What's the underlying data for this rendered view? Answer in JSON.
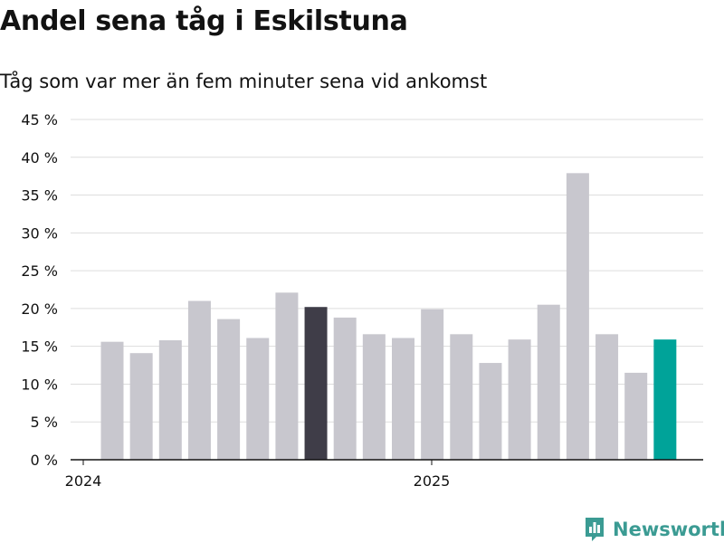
{
  "chart_data": {
    "type": "bar",
    "title": "Andel sena tåg i Eskilstuna",
    "subtitle": "Tåg som var mer än fem minuter sena vid ankomst",
    "y_ticks": [
      "0 %",
      "5 %",
      "10 %",
      "15 %",
      "20 %",
      "25 %",
      "30 %",
      "35 %",
      "40 %",
      "45 %"
    ],
    "ylim": [
      0,
      45
    ],
    "x_tick_labels": [
      "2024",
      "2025"
    ],
    "grid": true,
    "values": [
      15.6,
      14.1,
      15.8,
      21.0,
      18.6,
      16.1,
      22.1,
      20.2,
      18.8,
      16.6,
      16.1,
      19.9,
      16.6,
      12.8,
      15.9,
      20.5,
      37.9,
      16.6,
      11.5,
      15.9
    ],
    "x_tick_positions": [
      0,
      12
    ],
    "colors": {
      "default": "#c8c7ce",
      "highlight": "#3f3d48",
      "latest": "#00a399",
      "grid": "#dddddd",
      "axis": "#121212"
    },
    "highlight_index": 7,
    "latest_index": 19
  },
  "brand": {
    "name": "Newsworthy",
    "color": "#3b9b93"
  }
}
